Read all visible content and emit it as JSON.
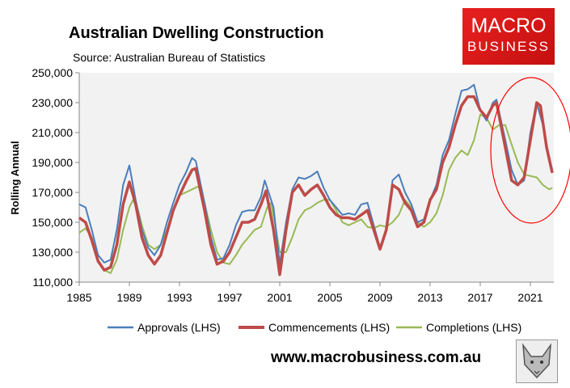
{
  "header": {
    "title": "Australian Dwelling Construction",
    "source": "Source: Australian Bureau of Statistics"
  },
  "logo": {
    "line1": "MACRO",
    "line2": "BUSINESS",
    "color": "#e01b1b"
  },
  "footer": {
    "url": "www.macrobusiness.com.au",
    "fox_icon": "fox-logo-icon"
  },
  "chart_data": {
    "type": "line",
    "title": "Australian Dwelling Construction",
    "ylabel": "Rolling Annual",
    "xlabel": "",
    "xlim": [
      1985,
      2022.75
    ],
    "ylim": [
      110000,
      250000
    ],
    "yticks": [
      110000,
      130000,
      150000,
      170000,
      190000,
      210000,
      230000,
      250000
    ],
    "ytick_labels": [
      "110,000",
      "130,000",
      "150,000",
      "170,000",
      "190,000",
      "210,000",
      "230,000",
      "250,000"
    ],
    "xticks": [
      1985,
      1989,
      1993,
      1997,
      2001,
      2005,
      2009,
      2013,
      2017,
      2021
    ],
    "xtick_labels": [
      "1985",
      "1989",
      "1993",
      "1997",
      "2001",
      "2005",
      "2009",
      "2013",
      "2017",
      "2021"
    ],
    "grid": false,
    "background": "#f2f2f2",
    "legend_placement": "bottom",
    "annotation": {
      "type": "ellipse",
      "color": "#ff0000",
      "around_years": [
        2019,
        2022.75
      ]
    },
    "series": [
      {
        "name": "Approvals (LHS)",
        "color": "#4a7ebb",
        "points": [
          [
            1985,
            162000
          ],
          [
            1985.5,
            160000
          ],
          [
            1986,
            145000
          ],
          [
            1986.5,
            128000
          ],
          [
            1987,
            123000
          ],
          [
            1987.5,
            125000
          ],
          [
            1988,
            145000
          ],
          [
            1988.5,
            175000
          ],
          [
            1989,
            188000
          ],
          [
            1989.5,
            165000
          ],
          [
            1990,
            145000
          ],
          [
            1990.5,
            133000
          ],
          [
            1991,
            128000
          ],
          [
            1991.5,
            135000
          ],
          [
            1992,
            150000
          ],
          [
            1992.5,
            163000
          ],
          [
            1993,
            175000
          ],
          [
            1993.5,
            183000
          ],
          [
            1994,
            193000
          ],
          [
            1994.3,
            191000
          ],
          [
            1995,
            163000
          ],
          [
            1995.5,
            140000
          ],
          [
            1996,
            125000
          ],
          [
            1996.5,
            126000
          ],
          [
            1997,
            135000
          ],
          [
            1997.5,
            148000
          ],
          [
            1998,
            157000
          ],
          [
            1998.5,
            158000
          ],
          [
            1999,
            158000
          ],
          [
            1999.5,
            167000
          ],
          [
            1999.8,
            178000
          ],
          [
            2000.5,
            160000
          ],
          [
            2001,
            122000
          ],
          [
            2001.5,
            150000
          ],
          [
            2002,
            172000
          ],
          [
            2002.5,
            180000
          ],
          [
            2003,
            179000
          ],
          [
            2003.5,
            181000
          ],
          [
            2004,
            184000
          ],
          [
            2004.5,
            173000
          ],
          [
            2005,
            165000
          ],
          [
            2005.5,
            160000
          ],
          [
            2006,
            155000
          ],
          [
            2006.5,
            156000
          ],
          [
            2007,
            155000
          ],
          [
            2007.5,
            162000
          ],
          [
            2008,
            163000
          ],
          [
            2008.5,
            148000
          ],
          [
            2009,
            133000
          ],
          [
            2009.5,
            145000
          ],
          [
            2010,
            178000
          ],
          [
            2010.5,
            182000
          ],
          [
            2011,
            170000
          ],
          [
            2011.5,
            162000
          ],
          [
            2012,
            150000
          ],
          [
            2012.5,
            152000
          ],
          [
            2013,
            165000
          ],
          [
            2013.5,
            175000
          ],
          [
            2014,
            195000
          ],
          [
            2014.5,
            205000
          ],
          [
            2015,
            222000
          ],
          [
            2015.5,
            238000
          ],
          [
            2016,
            239000
          ],
          [
            2016.5,
            242000
          ],
          [
            2017,
            225000
          ],
          [
            2017.5,
            218000
          ],
          [
            2018,
            230000
          ],
          [
            2018.3,
            232000
          ],
          [
            2019,
            205000
          ],
          [
            2019.5,
            185000
          ],
          [
            2020,
            175000
          ],
          [
            2020.5,
            178000
          ],
          [
            2021,
            210000
          ],
          [
            2021.5,
            230000
          ],
          [
            2022,
            215000
          ],
          [
            2022.5,
            193000
          ],
          [
            2022.75,
            185000
          ]
        ]
      },
      {
        "name": "Commencements (LHS)",
        "color": "#be4b48",
        "points": [
          [
            1985,
            153000
          ],
          [
            1985.5,
            150000
          ],
          [
            1986,
            138000
          ],
          [
            1986.5,
            124000
          ],
          [
            1987,
            118000
          ],
          [
            1987.5,
            120000
          ],
          [
            1988,
            135000
          ],
          [
            1988.5,
            162000
          ],
          [
            1989,
            177000
          ],
          [
            1989.5,
            162000
          ],
          [
            1990,
            140000
          ],
          [
            1990.5,
            128000
          ],
          [
            1991,
            122000
          ],
          [
            1991.5,
            128000
          ],
          [
            1992,
            143000
          ],
          [
            1992.5,
            158000
          ],
          [
            1993,
            168000
          ],
          [
            1993.5,
            177000
          ],
          [
            1994,
            185000
          ],
          [
            1994.3,
            186000
          ],
          [
            1995,
            158000
          ],
          [
            1995.5,
            135000
          ],
          [
            1996,
            122000
          ],
          [
            1996.5,
            124000
          ],
          [
            1997,
            130000
          ],
          [
            1997.5,
            140000
          ],
          [
            1998,
            150000
          ],
          [
            1998.5,
            150000
          ],
          [
            1999,
            152000
          ],
          [
            1999.5,
            162000
          ],
          [
            1999.9,
            171000
          ],
          [
            2000.5,
            145000
          ],
          [
            2001,
            115000
          ],
          [
            2001.5,
            145000
          ],
          [
            2002,
            170000
          ],
          [
            2002.5,
            175000
          ],
          [
            2003,
            168000
          ],
          [
            2003.5,
            172000
          ],
          [
            2004,
            175000
          ],
          [
            2004.5,
            168000
          ],
          [
            2005,
            160000
          ],
          [
            2005.5,
            155000
          ],
          [
            2006,
            153000
          ],
          [
            2006.5,
            153000
          ],
          [
            2007,
            152000
          ],
          [
            2007.5,
            155000
          ],
          [
            2008,
            158000
          ],
          [
            2008.5,
            145000
          ],
          [
            2009,
            132000
          ],
          [
            2009.5,
            145000
          ],
          [
            2010,
            175000
          ],
          [
            2010.5,
            172000
          ],
          [
            2011,
            163000
          ],
          [
            2011.5,
            158000
          ],
          [
            2012,
            147000
          ],
          [
            2012.5,
            150000
          ],
          [
            2013,
            165000
          ],
          [
            2013.5,
            172000
          ],
          [
            2014,
            190000
          ],
          [
            2014.5,
            200000
          ],
          [
            2015,
            215000
          ],
          [
            2015.5,
            228000
          ],
          [
            2016,
            234000
          ],
          [
            2016.5,
            234000
          ],
          [
            2017,
            225000
          ],
          [
            2017.5,
            220000
          ],
          [
            2018,
            228000
          ],
          [
            2018.3,
            230000
          ],
          [
            2019,
            200000
          ],
          [
            2019.5,
            178000
          ],
          [
            2020,
            175000
          ],
          [
            2020.5,
            180000
          ],
          [
            2021,
            205000
          ],
          [
            2021.5,
            230000
          ],
          [
            2021.8,
            228000
          ],
          [
            2022.3,
            200000
          ],
          [
            2022.75,
            183000
          ]
        ]
      },
      {
        "name": "Completions (LHS)",
        "color": "#98b954",
        "points": [
          [
            1985,
            143000
          ],
          [
            1985.5,
            146000
          ],
          [
            1986,
            140000
          ],
          [
            1986.5,
            125000
          ],
          [
            1987,
            118000
          ],
          [
            1987.5,
            116000
          ],
          [
            1988,
            125000
          ],
          [
            1988.5,
            145000
          ],
          [
            1989,
            160000
          ],
          [
            1989.3,
            165000
          ],
          [
            1989.7,
            158000
          ],
          [
            1990,
            148000
          ],
          [
            1990.5,
            135000
          ],
          [
            1991,
            132000
          ],
          [
            1991.5,
            135000
          ],
          [
            1992,
            145000
          ],
          [
            1992.5,
            158000
          ],
          [
            1993,
            168000
          ],
          [
            1993.5,
            170000
          ],
          [
            1994,
            172000
          ],
          [
            1994.5,
            174000
          ],
          [
            1995,
            163000
          ],
          [
            1995.5,
            145000
          ],
          [
            1996,
            130000
          ],
          [
            1996.5,
            123000
          ],
          [
            1997,
            122000
          ],
          [
            1997.5,
            128000
          ],
          [
            1998,
            135000
          ],
          [
            1998.5,
            140000
          ],
          [
            1999,
            145000
          ],
          [
            1999.5,
            147000
          ],
          [
            2000,
            160000
          ],
          [
            2000.3,
            163000
          ],
          [
            2000.7,
            145000
          ],
          [
            2001,
            130000
          ],
          [
            2001.5,
            130000
          ],
          [
            2002,
            140000
          ],
          [
            2002.5,
            152000
          ],
          [
            2003,
            158000
          ],
          [
            2003.5,
            160000
          ],
          [
            2004,
            163000
          ],
          [
            2004.5,
            165000
          ],
          [
            2005,
            165000
          ],
          [
            2005.5,
            158000
          ],
          [
            2006,
            150000
          ],
          [
            2006.5,
            148000
          ],
          [
            2007,
            150000
          ],
          [
            2007.5,
            152000
          ],
          [
            2008,
            147000
          ],
          [
            2008.5,
            146000
          ],
          [
            2009,
            148000
          ],
          [
            2009.5,
            147000
          ],
          [
            2010,
            150000
          ],
          [
            2010.5,
            155000
          ],
          [
            2011,
            165000
          ],
          [
            2011.5,
            160000
          ],
          [
            2012,
            150000
          ],
          [
            2012.5,
            147000
          ],
          [
            2013,
            150000
          ],
          [
            2013.5,
            156000
          ],
          [
            2014,
            168000
          ],
          [
            2014.5,
            185000
          ],
          [
            2015,
            193000
          ],
          [
            2015.5,
            198000
          ],
          [
            2016,
            195000
          ],
          [
            2016.5,
            205000
          ],
          [
            2017,
            222000
          ],
          [
            2017.5,
            220000
          ],
          [
            2018,
            212000
          ],
          [
            2018.5,
            215000
          ],
          [
            2019,
            215000
          ],
          [
            2019.5,
            202000
          ],
          [
            2020,
            190000
          ],
          [
            2020.5,
            182000
          ],
          [
            2021,
            181000
          ],
          [
            2021.5,
            180000
          ],
          [
            2022,
            175000
          ],
          [
            2022.5,
            172000
          ],
          [
            2022.75,
            173000
          ]
        ]
      }
    ]
  }
}
